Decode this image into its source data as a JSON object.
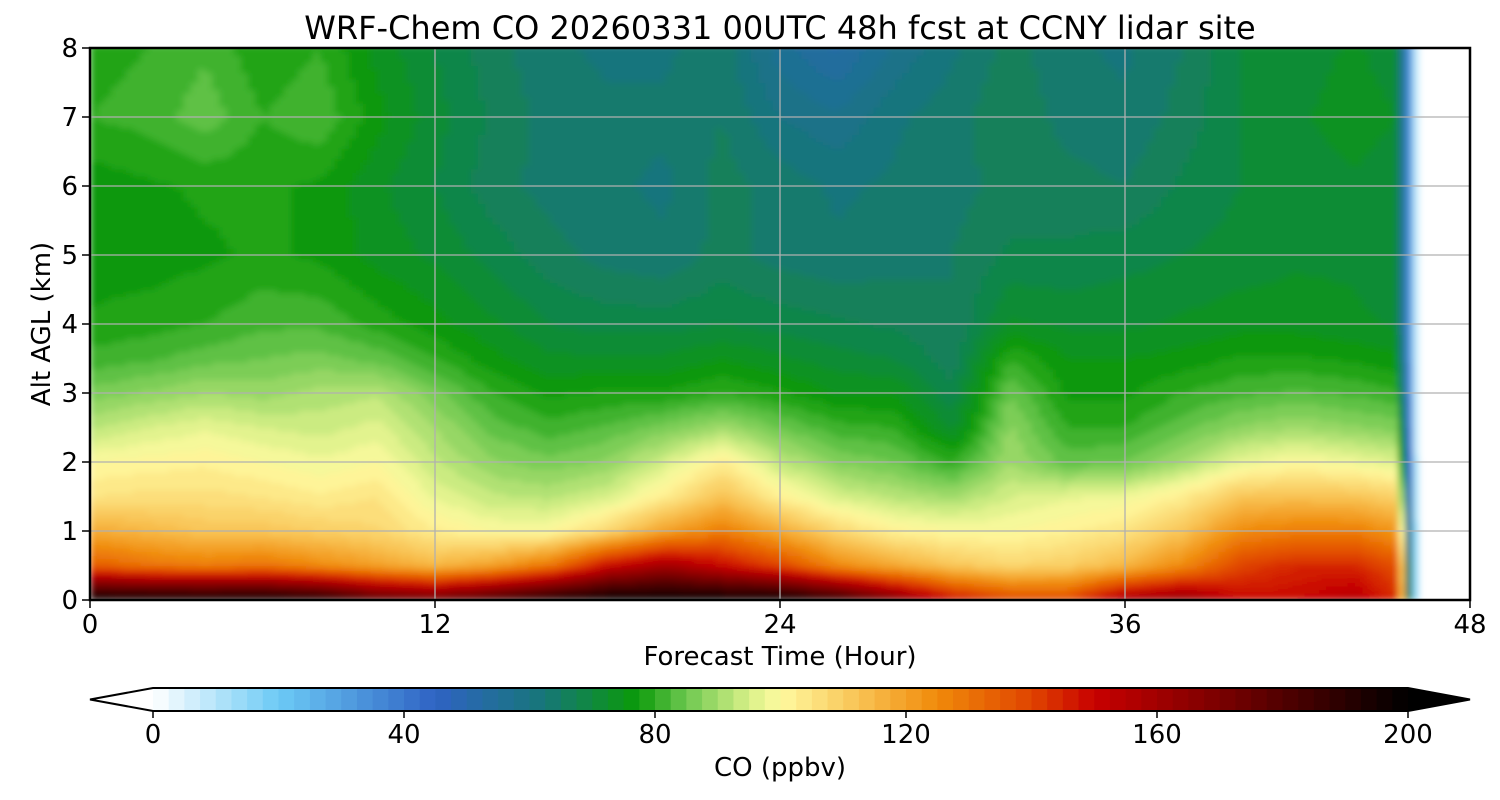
{
  "chart_data": {
    "type": "heatmap",
    "title": "WRF-Chem CO  20260331 00UTC 48h fcst at CCNY lidar site",
    "xlabel": "Forecast Time (Hour)",
    "ylabel": "Alt AGL (km)",
    "xlim": [
      0,
      48
    ],
    "ylim": [
      0,
      8
    ],
    "xticks": [
      0,
      12,
      24,
      36,
      48
    ],
    "yticks": [
      0,
      1,
      2,
      3,
      4,
      5,
      6,
      7,
      8
    ],
    "grid": true,
    "colorbar": {
      "label": "CO  (ppbv)",
      "range": [
        0,
        200
      ],
      "ticks": [
        0,
        40,
        80,
        120,
        160,
        200
      ],
      "extend": "both",
      "levels": 80,
      "colormap_stops": [
        [
          0,
          "#ffffff"
        ],
        [
          20,
          "#6ccaf5"
        ],
        [
          45,
          "#2f63c3"
        ],
        [
          62,
          "#17767a"
        ],
        [
          77,
          "#0a9a0a"
        ],
        [
          85,
          "#6ec850"
        ],
        [
          95,
          "#d8f088"
        ],
        [
          100,
          "#fffaa0"
        ],
        [
          113,
          "#f8c050"
        ],
        [
          125,
          "#f08a0a"
        ],
        [
          140,
          "#e04400"
        ],
        [
          150,
          "#c80000"
        ],
        [
          170,
          "#7a0000"
        ],
        [
          200,
          "#000000"
        ]
      ]
    },
    "data_end_hour": 46.2,
    "times": [
      0,
      2,
      4,
      6,
      8,
      10,
      12,
      14,
      16,
      18,
      20,
      22,
      24,
      26,
      28,
      30,
      32,
      34,
      36,
      38,
      40,
      42,
      44,
      46
    ],
    "altitudes_km": [
      0,
      0.5,
      1,
      1.5,
      2,
      2.5,
      3,
      3.5,
      4,
      5,
      6,
      7,
      8
    ],
    "values_ppbv": [
      [
        200,
        200,
        200,
        200,
        195,
        180,
        175,
        185,
        195,
        200,
        200,
        200,
        200,
        190,
        170,
        150,
        140,
        140,
        160,
        165,
        150,
        150,
        155,
        140
      ],
      [
        135,
        130,
        128,
        130,
        125,
        120,
        115,
        120,
        130,
        150,
        160,
        150,
        140,
        125,
        118,
        112,
        108,
        110,
        115,
        125,
        140,
        145,
        145,
        135
      ],
      [
        118,
        115,
        112,
        112,
        110,
        108,
        103,
        100,
        100,
        108,
        120,
        128,
        118,
        108,
        102,
        100,
        100,
        102,
        105,
        112,
        125,
        128,
        128,
        120
      ],
      [
        105,
        106,
        106,
        105,
        103,
        105,
        97,
        93,
        92,
        95,
        103,
        113,
        102,
        95,
        92,
        90,
        95,
        97,
        98,
        103,
        112,
        113,
        112,
        108
      ],
      [
        100,
        101,
        102,
        100,
        98,
        100,
        93,
        88,
        86,
        88,
        95,
        103,
        93,
        87,
        85,
        80,
        90,
        84,
        85,
        90,
        97,
        100,
        98,
        95
      ],
      [
        92,
        95,
        97,
        95,
        94,
        96,
        90,
        84,
        81,
        83,
        86,
        90,
        85,
        81,
        80,
        72,
        88,
        80,
        80,
        84,
        88,
        90,
        88,
        86
      ],
      [
        86,
        88,
        90,
        89,
        91,
        92,
        86,
        80,
        77,
        78,
        78,
        80,
        78,
        75,
        75,
        68,
        85,
        77,
        77,
        80,
        82,
        83,
        82,
        80
      ],
      [
        81,
        82,
        84,
        85,
        86,
        84,
        80,
        76,
        73,
        73,
        73,
        75,
        73,
        71,
        70,
        66,
        80,
        75,
        75,
        76,
        78,
        78,
        77,
        75
      ],
      [
        78,
        79,
        80,
        82,
        82,
        79,
        76,
        73,
        70,
        69,
        69,
        70,
        69,
        68,
        67,
        65,
        73,
        72,
        72,
        73,
        74,
        74,
        73,
        72
      ],
      [
        76,
        76,
        77,
        78,
        77,
        74,
        72,
        69,
        66,
        64,
        63,
        66,
        64,
        63,
        64,
        65,
        68,
        68,
        69,
        70,
        71,
        72,
        72,
        70
      ],
      [
        76,
        77,
        78,
        78,
        77,
        73,
        70,
        66,
        64,
        63,
        62,
        66,
        64,
        62,
        63,
        64,
        66,
        66,
        65,
        68,
        70,
        71,
        72,
        70
      ],
      [
        80,
        81,
        84,
        80,
        82,
        76,
        71,
        67,
        64,
        63,
        63,
        65,
        60,
        58,
        62,
        64,
        67,
        64,
        63,
        66,
        70,
        72,
        74,
        72
      ],
      [
        79,
        80,
        82,
        78,
        80,
        74,
        70,
        66,
        63,
        62,
        62,
        64,
        56,
        52,
        58,
        62,
        66,
        63,
        62,
        65,
        70,
        71,
        73,
        70
      ]
    ]
  }
}
